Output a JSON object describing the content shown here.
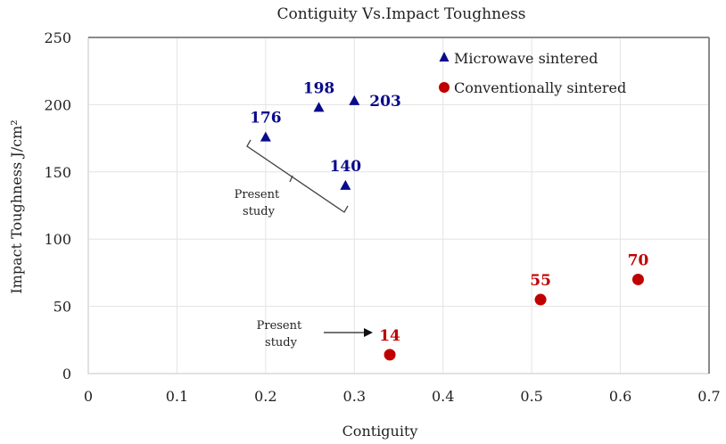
{
  "chart_data": {
    "type": "scatter",
    "title": "Contiguity Vs.Impact Toughness",
    "xlabel": "Contiguity",
    "ylabel": "Impact Toughness  J/cm²",
    "xlim": [
      0,
      0.7
    ],
    "ylim": [
      0,
      250
    ],
    "xticks": [
      "0",
      "0.1",
      "0.2",
      "0.3",
      "0.4",
      "0.5",
      "0.6",
      "0.7"
    ],
    "yticks": [
      "0",
      "50",
      "100",
      "150",
      "200",
      "250"
    ],
    "xtick_values": [
      0,
      0.1,
      0.2,
      0.3,
      0.4,
      0.5,
      0.6,
      0.7
    ],
    "ytick_values": [
      0,
      50,
      100,
      150,
      200,
      250
    ],
    "grid": true,
    "legend_position": "top-right",
    "series": [
      {
        "name": "Microwave sintered",
        "marker": "triangle",
        "color": "#0a0a8c",
        "points": [
          {
            "x": 0.2,
            "y": 176,
            "label": "176"
          },
          {
            "x": 0.26,
            "y": 198,
            "label": "198"
          },
          {
            "x": 0.3,
            "y": 203,
            "label": "203"
          },
          {
            "x": 0.29,
            "y": 140,
            "label": "140"
          }
        ]
      },
      {
        "name": "Conventionally sintered",
        "marker": "circle",
        "color": "#c00000",
        "points": [
          {
            "x": 0.34,
            "y": 14,
            "label": "14"
          },
          {
            "x": 0.51,
            "y": 55,
            "label": "55"
          },
          {
            "x": 0.62,
            "y": 70,
            "label": "70"
          }
        ]
      }
    ],
    "annotations": [
      {
        "text_lines": [
          "Present",
          "study"
        ],
        "refers_to": "Microwave sintered points",
        "style": "bracket"
      },
      {
        "text_lines": [
          "Present",
          "study"
        ],
        "refers_to": "Conventionally sintered point 14",
        "style": "arrow"
      }
    ]
  }
}
